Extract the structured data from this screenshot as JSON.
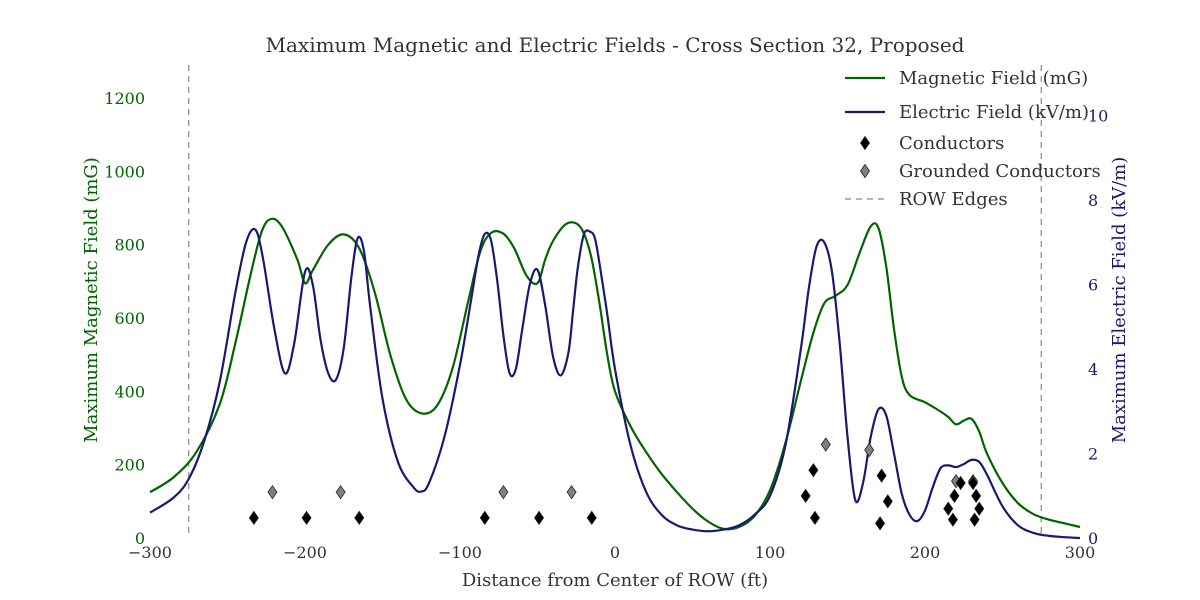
{
  "chart_data": {
    "type": "line",
    "title": "Maximum Magnetic and Electric Fields - Cross Section 32, Proposed",
    "xlabel": "Distance from Center of ROW (ft)",
    "ylabel_left": "Maximum Magnetic Field (mG)",
    "ylabel_right": "Maximum Electric Field (kV/m)",
    "xlim": [
      -300,
      300
    ],
    "ylim_left": [
      0,
      1290
    ],
    "ylim_right": [
      0,
      11.2
    ],
    "x_ticks": [
      -300,
      -200,
      -100,
      0,
      100,
      200,
      300
    ],
    "x_tick_labels": [
      "−300",
      "−200",
      "−100",
      "0",
      "100",
      "200",
      "300"
    ],
    "y_left_ticks": [
      0,
      200,
      400,
      600,
      800,
      1000,
      1200
    ],
    "y_left_tick_labels": [
      "0",
      "200",
      "400",
      "600",
      "800",
      "1000",
      "1200"
    ],
    "y_right_ticks": [
      0,
      2,
      4,
      6,
      8,
      10
    ],
    "y_right_tick_labels": [
      "0",
      "2",
      "4",
      "6",
      "8",
      "10"
    ],
    "grid": false,
    "legend_position": "top-right",
    "colors": {
      "magnetic": "#006400",
      "electric": "#191970",
      "conductor": "#000000",
      "grounded": "#808080",
      "row_edge": "#888888",
      "text": "#333333"
    },
    "series": [
      {
        "name": "Magnetic Field (mG)",
        "axis": "left",
        "x": [
          -300,
          -285,
          -270,
          -255,
          -245,
          -235,
          -228,
          -222,
          -215,
          -205,
          -200,
          -195,
          -185,
          -175,
          -165,
          -155,
          -145,
          -135,
          -125,
          -115,
          -105,
          -95,
          -87,
          -80,
          -72,
          -65,
          -57,
          -50,
          -45,
          -40,
          -32,
          -25,
          -20,
          -15,
          -10,
          -5,
          0,
          10,
          20,
          30,
          40,
          50,
          60,
          70,
          80,
          90,
          100,
          110,
          120,
          128,
          135,
          142,
          150,
          158,
          165,
          170,
          175,
          180,
          185,
          190,
          200,
          210,
          215,
          220,
          225,
          230,
          235,
          240,
          250,
          260,
          270,
          280,
          290,
          300
        ],
        "y": [
          125,
          165,
          235,
          365,
          530,
          720,
          835,
          870,
          850,
          760,
          695,
          730,
          800,
          828,
          790,
          670,
          500,
          380,
          340,
          360,
          460,
          640,
          780,
          832,
          830,
          790,
          715,
          695,
          760,
          810,
          855,
          858,
          830,
          760,
          640,
          500,
          400,
          305,
          235,
          175,
          125,
          80,
          45,
          25,
          30,
          60,
          130,
          260,
          430,
          560,
          640,
          660,
          690,
          780,
          850,
          845,
          740,
          570,
          440,
          390,
          370,
          345,
          330,
          310,
          320,
          325,
          290,
          230,
          150,
          95,
          65,
          50,
          40,
          30
        ]
      },
      {
        "name": "Electric Field (kV/m)",
        "axis": "right",
        "x": [
          -300,
          -285,
          -275,
          -265,
          -255,
          -245,
          -238,
          -232,
          -227,
          -220,
          -213,
          -207,
          -200,
          -195,
          -190,
          -185,
          -180,
          -175,
          -170,
          -166,
          -162,
          -158,
          -150,
          -140,
          -130,
          -125,
          -120,
          -110,
          -100,
          -93,
          -88,
          -84,
          -80,
          -76,
          -72,
          -68,
          -64,
          -60,
          -55,
          -50,
          -45,
          -40,
          -35,
          -30,
          -27,
          -24,
          -20,
          -16,
          -13,
          -10,
          -5,
          0,
          10,
          20,
          30,
          40,
          50,
          60,
          70,
          80,
          90,
          100,
          110,
          120,
          125,
          130,
          135,
          140,
          145,
          150,
          155,
          160,
          165,
          170,
          175,
          180,
          185,
          190,
          195,
          200,
          205,
          210,
          215,
          220,
          225,
          230,
          235,
          240,
          250,
          260,
          270,
          280,
          290,
          300
        ],
        "y": [
          0.6,
          0.95,
          1.4,
          2.3,
          3.7,
          5.8,
          7.0,
          7.3,
          6.6,
          5.0,
          3.9,
          4.6,
          6.3,
          6.0,
          4.7,
          3.9,
          3.75,
          4.5,
          6.2,
          7.1,
          6.8,
          5.5,
          3.3,
          1.8,
          1.2,
          1.1,
          1.3,
          2.4,
          4.1,
          5.6,
          6.7,
          7.2,
          7.05,
          6.1,
          4.8,
          3.9,
          4.0,
          4.9,
          6.0,
          6.35,
          5.5,
          4.3,
          3.85,
          4.4,
          5.4,
          6.4,
          7.2,
          7.25,
          7.1,
          6.5,
          5.3,
          4.0,
          2.2,
          1.1,
          0.55,
          0.3,
          0.2,
          0.16,
          0.2,
          0.3,
          0.55,
          1.0,
          2.2,
          4.5,
          5.9,
          6.9,
          7.0,
          6.3,
          4.6,
          2.4,
          0.9,
          1.3,
          2.4,
          3.05,
          2.9,
          2.0,
          1.05,
          0.55,
          0.4,
          0.65,
          1.2,
          1.65,
          1.72,
          1.68,
          1.75,
          1.85,
          1.8,
          1.5,
          0.75,
          0.3,
          0.12,
          0.05,
          0.02,
          0.0
        ]
      }
    ],
    "conductors": {
      "name": "Conductors",
      "points": [
        [
          -233,
          55
        ],
        [
          -199,
          55
        ],
        [
          -165,
          55
        ],
        [
          -84,
          55
        ],
        [
          -49,
          55
        ],
        [
          -15,
          55
        ],
        [
          123,
          115
        ],
        [
          128,
          185
        ],
        [
          129,
          55
        ],
        [
          171,
          40
        ],
        [
          172,
          170
        ],
        [
          176,
          100
        ],
        [
          215,
          80
        ],
        [
          218,
          50
        ],
        [
          219,
          115
        ],
        [
          223,
          150
        ],
        [
          231,
          150
        ],
        [
          233,
          115
        ],
        [
          235,
          80
        ],
        [
          232,
          50
        ]
      ]
    },
    "grounded_conductors": {
      "name": "Grounded Conductors",
      "points": [
        [
          -221,
          125
        ],
        [
          -177,
          125
        ],
        [
          -72,
          125
        ],
        [
          -28,
          125
        ],
        [
          136,
          255
        ],
        [
          164,
          240
        ],
        [
          220,
          155
        ],
        [
          231,
          155
        ]
      ]
    },
    "row_edges": {
      "name": "ROW Edges",
      "x": [
        -275,
        275
      ]
    },
    "legend": [
      {
        "key": "magnetic",
        "label": "Magnetic Field (mG)",
        "style": "line"
      },
      {
        "key": "electric",
        "label": "Electric Field (kV/m)",
        "style": "line"
      },
      {
        "key": "conductor",
        "label": "Conductors",
        "style": "diamond"
      },
      {
        "key": "grounded",
        "label": "Grounded Conductors",
        "style": "diamond"
      },
      {
        "key": "row_edge",
        "label": "ROW Edges",
        "style": "dashed"
      }
    ]
  }
}
